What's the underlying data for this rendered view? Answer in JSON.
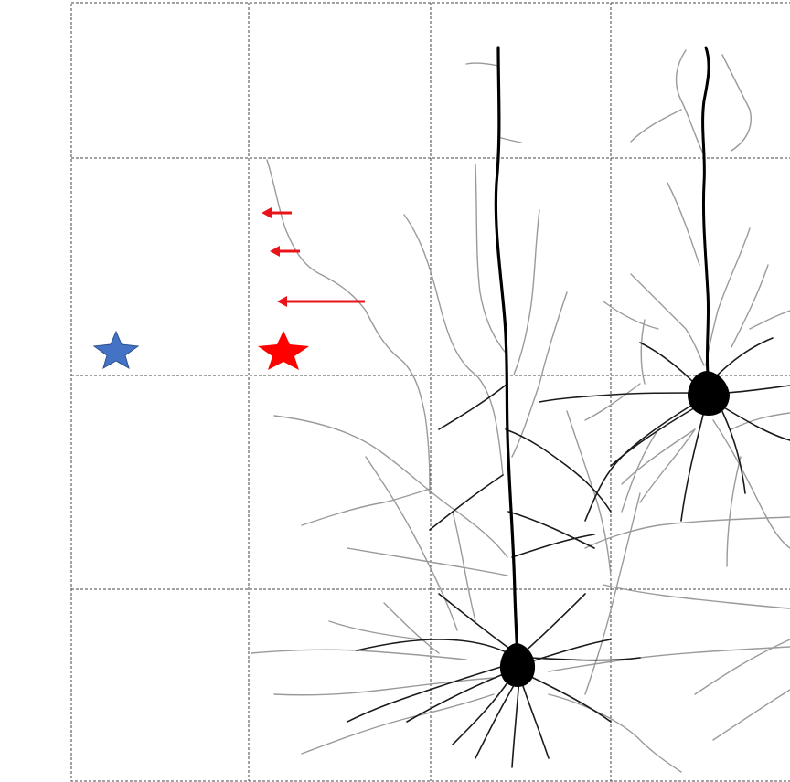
{
  "diagram": {
    "grid": {
      "columns": 4,
      "rows": 4,
      "line_style": "dashed"
    },
    "colors": {
      "grid": "#444444",
      "neuron_dark": "#000000",
      "neuron_faint": "#9a9a9a",
      "arrow": "#e8141a",
      "star_red": "#ff0000",
      "star_blue": "#4472c4",
      "star_blue_outline": "#2f528f"
    },
    "markers": [
      {
        "name": "blue-star",
        "kind": "star"
      },
      {
        "name": "red-star",
        "kind": "star"
      }
    ],
    "arrows": [
      {
        "name": "arrow-1",
        "direction": "left"
      },
      {
        "name": "arrow-2",
        "direction": "left"
      },
      {
        "name": "arrow-3",
        "direction": "left"
      }
    ],
    "neurons": [
      {
        "name": "neuron-left",
        "type": "pyramidal"
      },
      {
        "name": "neuron-right",
        "type": "pyramidal"
      }
    ]
  }
}
